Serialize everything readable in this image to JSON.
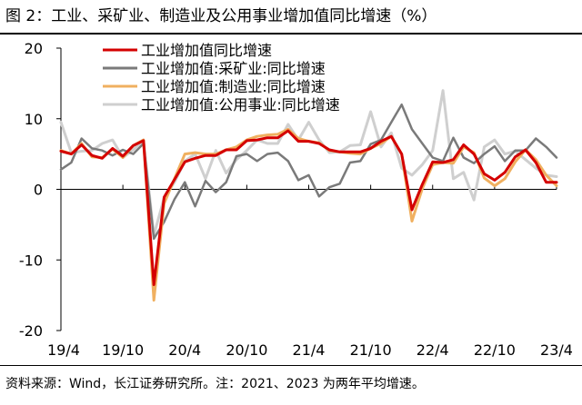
{
  "figure": {
    "title": "图 2：工业、采矿业、制造业及公用事业增加值同比增速（%）",
    "source": "资料来源：Wind，长江证券研究所。注：2021、2023 为两年平均增速。"
  },
  "chart_data": {
    "type": "line",
    "title": "",
    "xlabel": "",
    "ylabel": "",
    "ylim": [
      -20,
      20
    ],
    "yticks": [
      -20,
      -10,
      0,
      10,
      20
    ],
    "ytick_labels": [
      "-20",
      "-10",
      "0",
      "10",
      "20"
    ],
    "xlim": [
      0,
      48
    ],
    "xticks": [
      0,
      6,
      12,
      18,
      24,
      30,
      36,
      42,
      48
    ],
    "xtick_labels": [
      "19/4",
      "19/10",
      "20/4",
      "20/10",
      "21/4",
      "21/10",
      "22/4",
      "22/10",
      "23/4"
    ],
    "grid": false,
    "legend_position": "top-left",
    "series": [
      {
        "name": "工业增加值同比增速",
        "color": "#d40000",
        "width": 3,
        "x": [
          0,
          1,
          2,
          3,
          4,
          5,
          6,
          7,
          8,
          9,
          10,
          12,
          13,
          14,
          15,
          16,
          17,
          18,
          19,
          20,
          21,
          22,
          23,
          24,
          25,
          26,
          27,
          28,
          29,
          30,
          31,
          32,
          33,
          34,
          35,
          36,
          37,
          38,
          39,
          40,
          41,
          42,
          43,
          44,
          45,
          46,
          47,
          48
        ],
        "values": [
          5.4,
          5.0,
          6.3,
          4.8,
          4.4,
          5.8,
          4.7,
          6.2,
          6.9,
          -13.5,
          -1.1,
          3.9,
          4.4,
          4.8,
          4.8,
          5.6,
          5.6,
          6.9,
          7.0,
          7.3,
          7.3,
          8.3,
          6.8,
          6.8,
          6.5,
          5.6,
          5.3,
          5.3,
          5.3,
          5.8,
          6.8,
          7.5,
          5.0,
          -2.9,
          0.7,
          3.9,
          3.8,
          4.2,
          6.3,
          5.0,
          2.2,
          1.3,
          2.4,
          4.6,
          5.6,
          3.8,
          1.0,
          1.0
        ]
      },
      {
        "name": "工业增加值:采矿业:同比增速",
        "color": "#7a7a7a",
        "width": 2.5,
        "x": [
          0,
          1,
          2,
          3,
          4,
          5,
          6,
          7,
          8,
          9,
          10,
          11,
          12,
          13,
          14,
          15,
          16,
          17,
          18,
          19,
          20,
          21,
          22,
          23,
          24,
          25,
          26,
          27,
          28,
          29,
          30,
          31,
          32,
          33,
          34,
          35,
          36,
          37,
          38,
          39,
          40,
          41,
          42,
          43,
          44,
          45,
          46,
          47,
          48
        ],
        "values": [
          2.8,
          3.8,
          7.2,
          5.8,
          5.5,
          4.8,
          5.6,
          5.0,
          6.5,
          -7.0,
          -4.6,
          -1.4,
          1.0,
          -2.4,
          1.2,
          -0.4,
          1.0,
          4.7,
          5.0,
          4.0,
          5.0,
          5.2,
          4.0,
          1.3,
          2.0,
          -1.0,
          0.3,
          0.8,
          3.8,
          4.0,
          6.4,
          7.0,
          9.5,
          12.0,
          8.5,
          6.5,
          4.5,
          4.0,
          7.3,
          4.5,
          3.7,
          5.0,
          6.1,
          4.0,
          5.5,
          5.5,
          7.2,
          6.0,
          4.5
        ]
      },
      {
        "name": "工业增加值:制造业:同比增速",
        "color": "#f0b060",
        "width": 3,
        "x": [
          0,
          1,
          2,
          3,
          4,
          5,
          6,
          7,
          8,
          9,
          10,
          12,
          13,
          14,
          15,
          16,
          17,
          18,
          19,
          20,
          21,
          22,
          23,
          24,
          25,
          26,
          27,
          28,
          29,
          30,
          31,
          32,
          33,
          34,
          35,
          36,
          37,
          38,
          39,
          40,
          41,
          42,
          43,
          44,
          45,
          46,
          47,
          48
        ],
        "values": [
          5.5,
          5.0,
          6.5,
          4.6,
          4.5,
          5.7,
          4.5,
          6.2,
          7.0,
          -15.7,
          -2.0,
          5.0,
          5.2,
          5.0,
          5.0,
          5.6,
          6.0,
          7.0,
          7.5,
          7.7,
          7.8,
          8.5,
          7.2,
          6.8,
          6.6,
          5.5,
          5.3,
          5.1,
          5.0,
          5.8,
          6.5,
          7.5,
          5.0,
          -4.5,
          0.1,
          3.5,
          3.8,
          3.7,
          6.0,
          5.2,
          1.6,
          0.5,
          1.5,
          3.9,
          5.6,
          4.2,
          2.0,
          0.5
        ]
      },
      {
        "name": "工业增加值:公用事业:同比增速",
        "color": "#cfcfcf",
        "width": 3,
        "x": [
          0,
          1,
          2,
          3,
          4,
          5,
          6,
          7,
          8,
          9,
          10,
          11,
          12,
          13,
          14,
          15,
          16,
          17,
          18,
          19,
          20,
          21,
          22,
          23,
          24,
          25,
          26,
          27,
          28,
          29,
          30,
          31,
          32,
          33,
          34,
          35,
          36,
          37,
          38,
          39,
          40,
          41,
          42,
          43,
          44,
          45,
          46,
          47,
          48
        ],
        "values": [
          9.5,
          5.2,
          5.4,
          5.5,
          6.5,
          7.0,
          4.5,
          5.6,
          7.0,
          -6.5,
          -1.2,
          1.0,
          4.0,
          5.0,
          1.5,
          5.5,
          2.3,
          4.2,
          5.5,
          7.0,
          6.5,
          6.5,
          9.2,
          7.0,
          9.5,
          7.0,
          5.2,
          5.3,
          6.2,
          6.3,
          11.0,
          6.0,
          8.0,
          3.0,
          2.0,
          3.5,
          5.5,
          14.0,
          1.5,
          2.4,
          -1.5,
          6.0,
          7.0,
          5.0,
          5.4,
          4.2,
          3.0,
          2.0,
          1.8
        ]
      }
    ]
  }
}
